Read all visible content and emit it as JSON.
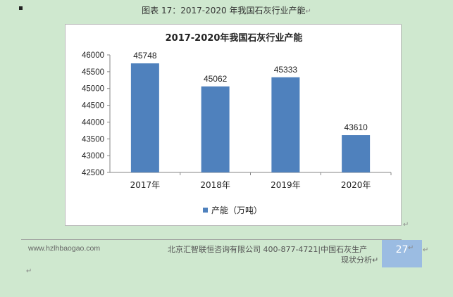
{
  "caption": {
    "text": "图表  17：2017-2020 年我国石灰行业产能",
    "para_mark": "↵"
  },
  "chart_data": {
    "type": "bar",
    "title": "2017-2020年我国石灰行业产能",
    "categories": [
      "2017年",
      "2018年",
      "2019年",
      "2020年"
    ],
    "series": [
      {
        "name": "产能（万吨）",
        "values": [
          45748,
          45062,
          45333,
          43610
        ],
        "color": "#4f81bd"
      }
    ],
    "data_labels": [
      "45748",
      "45062",
      "45333",
      "43610"
    ],
    "ylim": [
      42500,
      46000
    ],
    "yticks": [
      42500,
      43000,
      43500,
      44000,
      44500,
      45000,
      45500,
      46000
    ],
    "grid": false,
    "legend_position": "bottom"
  },
  "footer": {
    "website": "www.hzlhbaogao.com",
    "company": "北京汇智联恒咨询有限公司  400-877-4721|中国石灰生产",
    "report_title": "现状分析↵",
    "page_number": "27",
    "para_mark": "↵"
  }
}
